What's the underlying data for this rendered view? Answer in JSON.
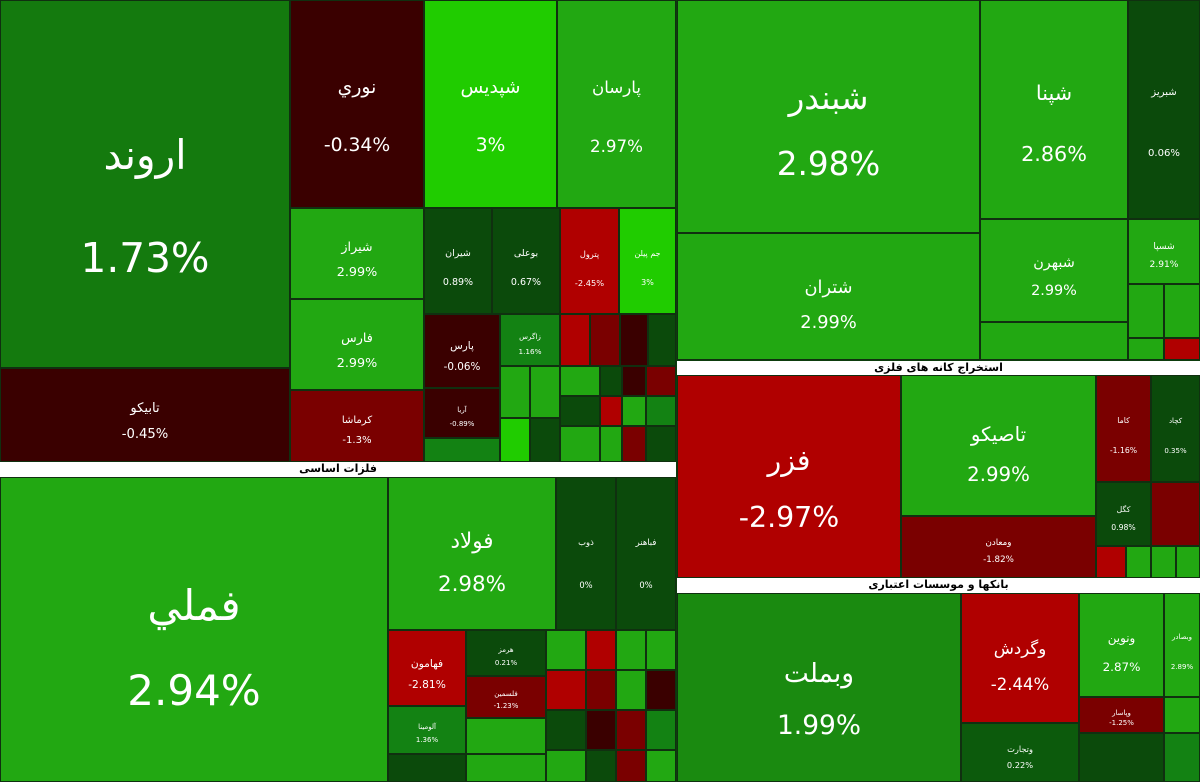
{
  "sectors": [
    {
      "tiles": [
        {
          "name": "اروند",
          "change": "1.73%"
        },
        {
          "name": "تابیکو",
          "change": "-0.45%"
        },
        {
          "name": "نوري",
          "change": "-0.34%"
        },
        {
          "name": "شپدیس",
          "change": "3%"
        },
        {
          "name": "پارسان",
          "change": "2.97%"
        },
        {
          "name": "شیراز",
          "change": "2.99%"
        },
        {
          "name": "فارس",
          "change": "2.99%"
        },
        {
          "name": "کرماشا",
          "change": "-1.3%"
        },
        {
          "name": "شیران",
          "change": "0.89%"
        },
        {
          "name": "بوعلی",
          "change": "0.67%"
        },
        {
          "name": "پترول",
          "change": "-2.45%"
        },
        {
          "name": "جم پیلن",
          "change": "3%"
        },
        {
          "name": "پارس",
          "change": "-0.06%"
        },
        {
          "name": "آریا",
          "change": "-0.89%"
        },
        {
          "name": "زاگرس",
          "change": "1.16%"
        }
      ]
    },
    {
      "tiles": [
        {
          "name": "شبندر",
          "change": "2.98%"
        },
        {
          "name": "شتران",
          "change": "2.99%"
        },
        {
          "name": "شپنا",
          "change": "2.86%"
        },
        {
          "name": "شبریز",
          "change": "0.06%"
        },
        {
          "name": "شبهرن",
          "change": "2.99%"
        },
        {
          "name": "شسپا",
          "change": "2.91%"
        }
      ]
    },
    {
      "title": "استخراج کانه های فلزی",
      "tiles": [
        {
          "name": "فزر",
          "change": "-2.97%"
        },
        {
          "name": "تاصیکو",
          "change": "2.99%"
        },
        {
          "name": "ومعادن",
          "change": "-1.82%"
        },
        {
          "name": "کاما",
          "change": "-1.16%"
        },
        {
          "name": "کچاد",
          "change": "0.35%"
        },
        {
          "name": "کگل",
          "change": "0.98%"
        }
      ]
    },
    {
      "title": "بانکها و موسسات اعتباری",
      "tiles": [
        {
          "name": "وبملت",
          "change": "1.99%"
        },
        {
          "name": "وگردش",
          "change": "-2.44%"
        },
        {
          "name": "ونوین",
          "change": "2.87%"
        },
        {
          "name": "وبصادر",
          "change": "2.89%"
        },
        {
          "name": "وتجارت",
          "change": "0.22%"
        },
        {
          "name": "وپاسار",
          "change": "-1.25%"
        }
      ]
    },
    {
      "title": "فلزات اساسی",
      "tiles": [
        {
          "name": "فملي",
          "change": "2.94%"
        },
        {
          "name": "فولاد",
          "change": "2.98%"
        },
        {
          "name": "ذوب",
          "change": "0%"
        },
        {
          "name": "فباهنر",
          "change": "0%"
        },
        {
          "name": "فهامون",
          "change": "-2.81%"
        },
        {
          "name": "هرمز",
          "change": "0.21%"
        },
        {
          "name": "فلسمین",
          "change": "-1.23%"
        },
        {
          "name": "آلومینا",
          "change": "1.36%"
        }
      ]
    }
  ]
}
